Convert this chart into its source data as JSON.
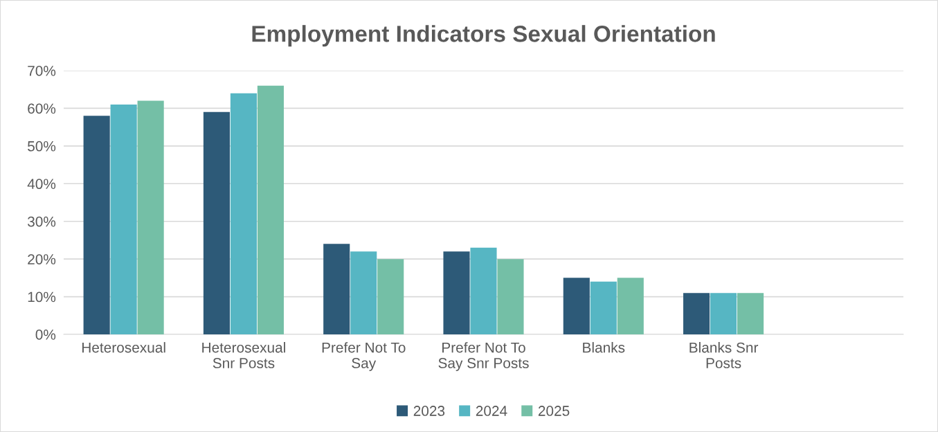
{
  "chart_data": {
    "type": "bar",
    "title": "Employment Indicators Sexual Orientation",
    "categories": [
      "Heterosexual",
      "Heterosexual\nSnr Posts",
      "Prefer Not To\nSay",
      "Prefer Not To\nSay Snr Posts",
      "Blanks",
      "Blanks Snr\nPosts",
      null
    ],
    "series": [
      {
        "name": "2023",
        "color": "#2d5a78",
        "values": [
          58,
          59,
          24,
          22,
          15,
          11,
          null
        ]
      },
      {
        "name": "2024",
        "color": "#56b6c3",
        "values": [
          61,
          64,
          22,
          23,
          14,
          11,
          null
        ]
      },
      {
        "name": "2025",
        "color": "#74bfa6",
        "values": [
          62,
          66,
          20,
          20,
          15,
          11,
          null
        ]
      }
    ],
    "ylim": [
      0,
      70
    ],
    "yticks": [
      {
        "value": 0,
        "label": "0%"
      },
      {
        "value": 10,
        "label": "10%"
      },
      {
        "value": 20,
        "label": "20%"
      },
      {
        "value": 30,
        "label": "30%"
      },
      {
        "value": 40,
        "label": "40%"
      },
      {
        "value": 50,
        "label": "50%"
      },
      {
        "value": 60,
        "label": "60%"
      },
      {
        "value": 70,
        "label": "70%"
      }
    ],
    "grid": "y",
    "legend": "bottom"
  }
}
